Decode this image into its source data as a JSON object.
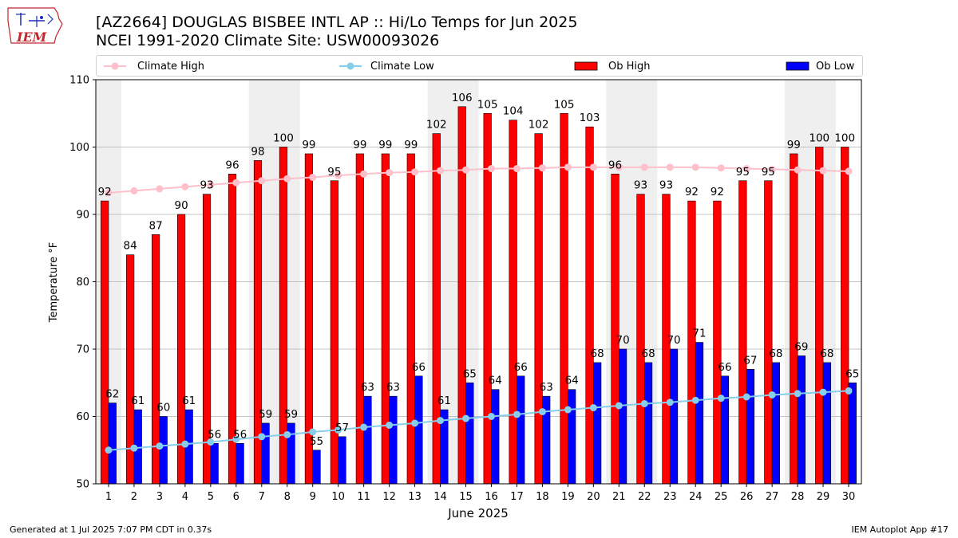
{
  "title_line1": "[AZ2664] DOUGLAS BISBEE INTL AP :: Hi/Lo Temps for Jun 2025",
  "title_line2": "NCEI 1991-2020 Climate Site: USW00093026",
  "logo_text": "IEM",
  "footer_left": "Generated at 1 Jul 2025 7:07 PM CDT in 0.37s",
  "footer_right": "IEM Autoplot App #17",
  "colors": {
    "ob_high": "#ff0000",
    "ob_low": "#0000ff",
    "climate_high": "#ffc0cb",
    "climate_low": "#87ceeb",
    "weekend_shade": "#efefef",
    "grid": "#b0b0b0"
  },
  "chart_data": {
    "type": "bar",
    "xlabel": "June 2025",
    "ylabel": "Temperature °F",
    "ylim": [
      50,
      110
    ],
    "yticks": [
      50,
      60,
      70,
      80,
      90,
      100,
      110
    ],
    "grid": true,
    "legend_position": "top",
    "categories": [
      "1",
      "2",
      "3",
      "4",
      "5",
      "6",
      "7",
      "8",
      "9",
      "10",
      "11",
      "12",
      "13",
      "14",
      "15",
      "16",
      "17",
      "18",
      "19",
      "20",
      "21",
      "22",
      "23",
      "24",
      "25",
      "26",
      "27",
      "28",
      "29",
      "30"
    ],
    "shaded_days": [
      1,
      7,
      8,
      14,
      15,
      21,
      22,
      28,
      29
    ],
    "series": [
      {
        "name": "Climate High",
        "kind": "line",
        "values": [
          93.2,
          93.5,
          93.8,
          94.1,
          94.4,
          94.7,
          95.0,
          95.3,
          95.5,
          95.8,
          96.0,
          96.2,
          96.3,
          96.5,
          96.6,
          96.8,
          96.8,
          96.9,
          97.0,
          97.0,
          97.0,
          97.0,
          97.0,
          97.0,
          96.9,
          96.8,
          96.7,
          96.6,
          96.5,
          96.4
        ]
      },
      {
        "name": "Climate Low",
        "kind": "line",
        "values": [
          55.0,
          55.3,
          55.6,
          55.9,
          56.2,
          56.6,
          57.0,
          57.3,
          57.7,
          58.0,
          58.4,
          58.7,
          59.0,
          59.4,
          59.7,
          60.0,
          60.3,
          60.7,
          61.0,
          61.3,
          61.6,
          61.9,
          62.1,
          62.4,
          62.7,
          62.9,
          63.2,
          63.4,
          63.6,
          63.8
        ]
      },
      {
        "name": "Ob High",
        "kind": "bar",
        "values": [
          92,
          84,
          87,
          90,
          93,
          96,
          98,
          100,
          99,
          95,
          99,
          99,
          99,
          102,
          106,
          105,
          104,
          102,
          105,
          103,
          96,
          93,
          93,
          92,
          92,
          95,
          95,
          99,
          100,
          100
        ]
      },
      {
        "name": "Ob Low",
        "kind": "bar",
        "values": [
          62,
          61,
          60,
          61,
          56,
          56,
          59,
          59,
          55,
          57,
          63,
          63,
          66,
          61,
          65,
          64,
          66,
          63,
          64,
          68,
          70,
          68,
          70,
          71,
          66,
          67,
          68,
          69,
          68,
          65
        ]
      }
    ]
  }
}
